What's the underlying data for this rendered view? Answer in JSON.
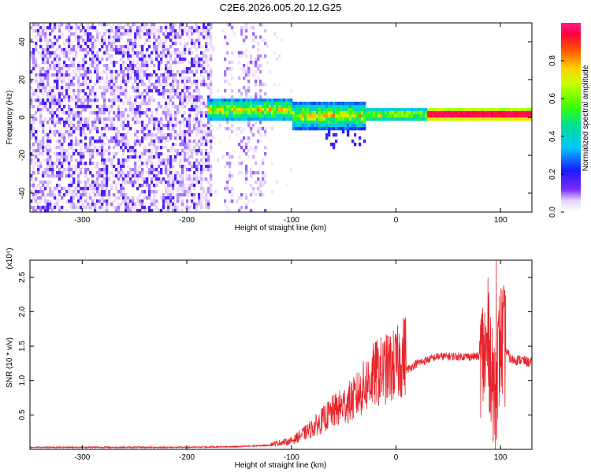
{
  "chart_data": [
    {
      "type": "heatmap",
      "title": "C2E6.2026.005.20.12.G25",
      "xlabel": "Height of straight line (km)",
      "ylabel": "Frequency (Hz)",
      "xlim": [
        -350,
        130
      ],
      "ylim": [
        -50,
        50
      ],
      "xticks": [
        -300,
        -200,
        -100,
        0,
        100
      ],
      "yticks": [
        -40,
        -20,
        0,
        20,
        40
      ],
      "colorbar": {
        "label": "Normalized spectral amplitude",
        "range": [
          0,
          1
        ],
        "ticks": [
          "0.0",
          "0.2",
          "0.4",
          "0.6",
          "0.8"
        ]
      },
      "regions": [
        {
          "x": [
            -350,
            -175
          ],
          "freq": [
            -50,
            50
          ],
          "amplitude": [
            0.02,
            0.2
          ]
        },
        {
          "x": [
            -160,
            -110
          ],
          "freq": [
            -50,
            50
          ],
          "amplitude": [
            0.0,
            0.1
          ]
        },
        {
          "x": [
            -180,
            130
          ],
          "freq": [
            -3,
            8
          ],
          "amplitude": [
            0.3,
            0.95
          ]
        },
        {
          "x": [
            30,
            130
          ],
          "freq": [
            0,
            3
          ],
          "amplitude": [
            0.85,
            1.0
          ]
        }
      ],
      "grid": false
    },
    {
      "type": "line",
      "xlabel": "Height of straight line (km)",
      "ylabel": "SNR (10 * v/v)",
      "yunit": "(x10⁴)",
      "xlim": [
        -350,
        130
      ],
      "ylim": [
        0,
        2.75
      ],
      "xticks": [
        -300,
        -200,
        -100,
        0,
        100
      ],
      "yticks": [
        "0.5",
        "1.0",
        "1.5",
        "2.0",
        "2.5"
      ],
      "series": [
        {
          "color": "#e8232a",
          "points": [
            [
              -350,
              0.03
            ],
            [
              -300,
              0.03
            ],
            [
              -250,
              0.03
            ],
            [
              -200,
              0.03
            ],
            [
              -150,
              0.04
            ],
            [
              -120,
              0.06
            ],
            [
              -100,
              0.1
            ],
            [
              -80,
              0.25
            ],
            [
              -60,
              0.45
            ],
            [
              -40,
              0.6
            ],
            [
              -30,
              0.75
            ],
            [
              -20,
              0.9
            ],
            [
              -10,
              0.95
            ],
            [
              0,
              1.0
            ],
            [
              10,
              1.15
            ],
            [
              20,
              1.25
            ],
            [
              40,
              1.35
            ],
            [
              60,
              1.35
            ],
            [
              80,
              1.35
            ],
            [
              90,
              1.4
            ],
            [
              95,
              0.8
            ],
            [
              100,
              1.6
            ],
            [
              110,
              1.3
            ],
            [
              120,
              1.3
            ],
            [
              130,
              1.25
            ]
          ],
          "spikes": [
            {
              "x": 88,
              "y": 2.5
            },
            {
              "x": 96,
              "y": 2.75
            },
            {
              "x": 93,
              "y": 0.1
            }
          ]
        }
      ],
      "grid": false
    }
  ]
}
